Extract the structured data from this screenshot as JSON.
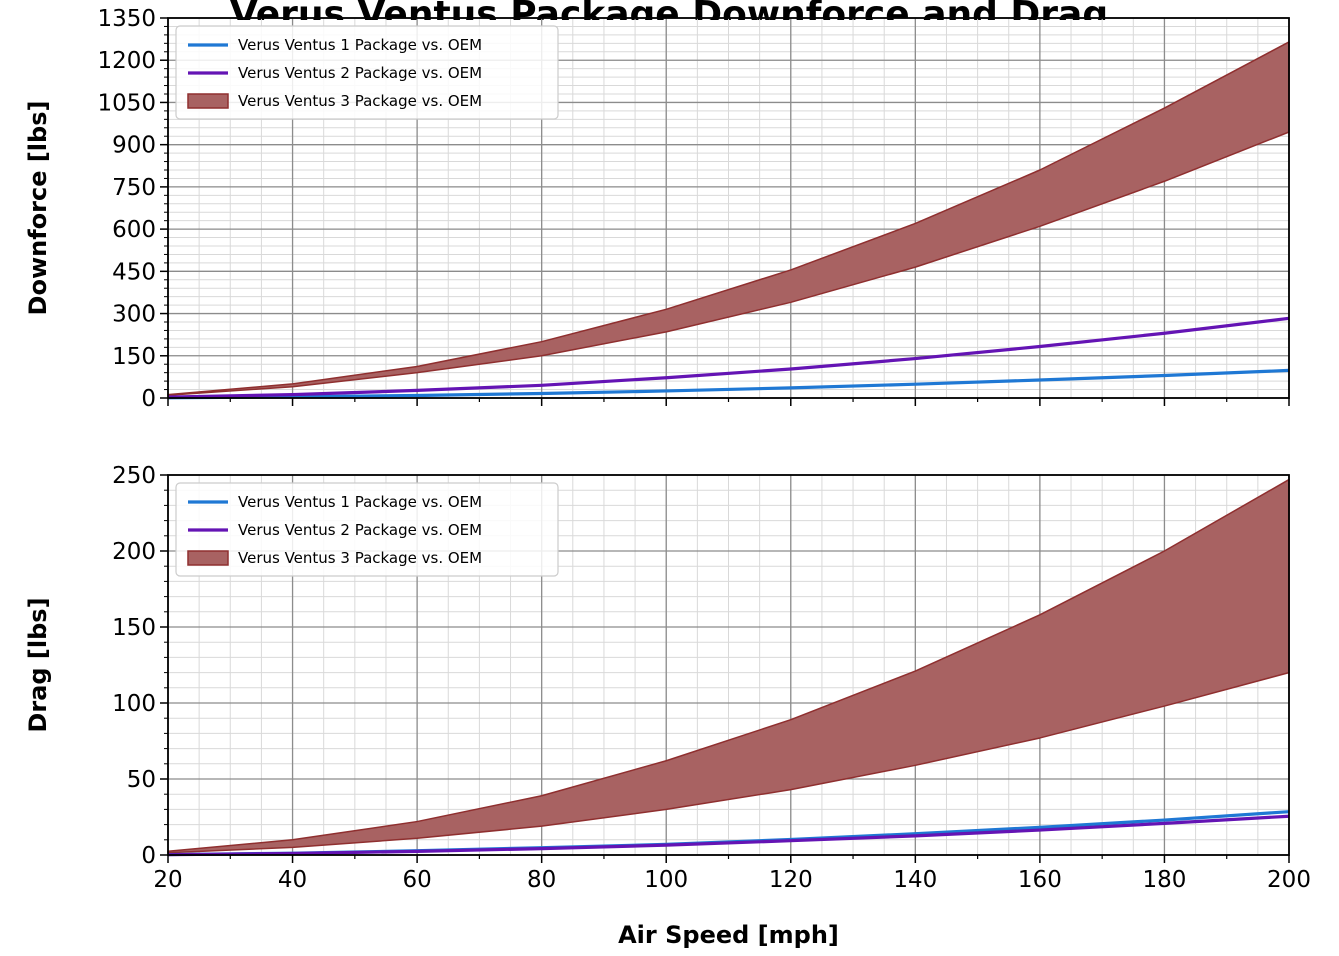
{
  "figure": {
    "title": "Verus Ventus Package Downforce and Drag"
  },
  "colors": {
    "ventus1": "#1f78d4",
    "ventus2": "#6414b4",
    "ventus3_fill": "#a86262",
    "ventus3_edge": "#8f2f2f",
    "grid_major": "#8c8c8c",
    "grid_minor": "#d9d9d9"
  },
  "chart_data": [
    {
      "type": "area",
      "ylabel": "Downforce [lbs]",
      "xlabel": "",
      "xlim": [
        20,
        200
      ],
      "ylim": [
        0,
        1350
      ],
      "x_ticks": [
        20,
        40,
        60,
        80,
        100,
        120,
        140,
        160,
        180,
        200
      ],
      "y_ticks": [
        0,
        150,
        300,
        450,
        600,
        750,
        900,
        1050,
        1200,
        1350
      ],
      "grid": true,
      "legend_position": "top-left",
      "x": [
        20,
        40,
        60,
        80,
        100,
        120,
        140,
        160,
        180,
        200
      ],
      "series": [
        {
          "name": "Verus Ventus 1 Package vs. OEM",
          "kind": "line",
          "values": [
            1,
            4,
            9,
            16,
            25,
            36,
            49,
            64,
            80,
            98
          ]
        },
        {
          "name": "Verus Ventus 2 Package vs. OEM",
          "kind": "line",
          "values": [
            3,
            12,
            27,
            45,
            72,
            103,
            140,
            183,
            230,
            283
          ]
        },
        {
          "name": "Verus Ventus 3 Package vs. OEM",
          "kind": "band",
          "lower": [
            10,
            40,
            90,
            150,
            235,
            340,
            465,
            610,
            770,
            945
          ],
          "upper": [
            12,
            50,
            112,
            200,
            315,
            455,
            620,
            810,
            1030,
            1265
          ]
        }
      ]
    },
    {
      "type": "area",
      "ylabel": "Drag [lbs]",
      "xlabel": "Air Speed [mph]",
      "xlim": [
        20,
        200
      ],
      "ylim": [
        0,
        250
      ],
      "x_ticks": [
        20,
        40,
        60,
        80,
        100,
        120,
        140,
        160,
        180,
        200
      ],
      "y_ticks": [
        0,
        50,
        100,
        150,
        200,
        250
      ],
      "grid": true,
      "legend_position": "top-left",
      "x": [
        20,
        40,
        60,
        80,
        100,
        120,
        140,
        160,
        180,
        200
      ],
      "series": [
        {
          "name": "Verus Ventus 1 Package vs. OEM",
          "kind": "line",
          "values": [
            0.3,
            1.2,
            2.8,
            4.8,
            7.0,
            10.2,
            14.0,
            18.2,
            23.0,
            28.5
          ]
        },
        {
          "name": "Verus Ventus 2 Package vs. OEM",
          "kind": "line",
          "values": [
            0.2,
            1.0,
            2.4,
            4.2,
            6.5,
            9.4,
            12.6,
            16.4,
            20.8,
            25.5
          ]
        },
        {
          "name": "Verus Ventus 3 Package vs. OEM",
          "kind": "band",
          "lower": [
            1.5,
            5,
            11,
            19,
            30,
            43,
            59,
            77,
            98,
            120
          ],
          "upper": [
            2.5,
            10,
            22,
            39,
            62,
            89,
            121,
            158,
            200,
            247
          ]
        }
      ]
    }
  ]
}
